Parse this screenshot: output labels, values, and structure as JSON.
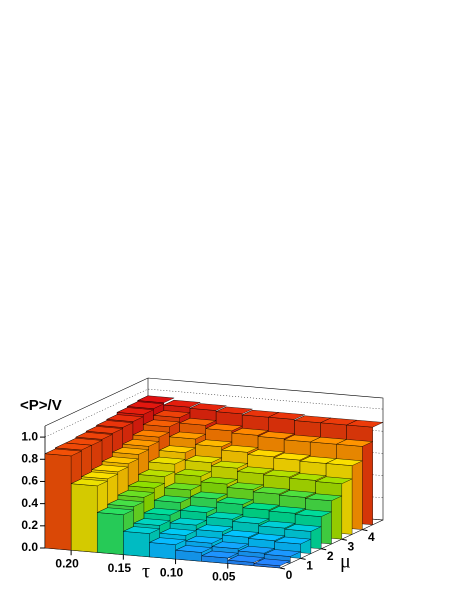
{
  "chart_data": {
    "type": "lego",
    "title": "<P>/V",
    "xlabel": "τ",
    "ylabel": "μ",
    "x_bins": [
      0,
      0.025,
      0.05,
      0.075,
      0.1,
      0.125,
      0.15,
      0.175,
      0.2,
      0.225
    ],
    "y_bins": [
      0,
      0.5,
      1,
      1.5,
      2,
      2.5,
      3,
      3.5,
      4,
      4.5,
      5
    ],
    "values": [
      [
        0.02,
        0.06,
        0.13,
        0.2,
        0.29,
        0.39,
        0.5,
        0.62,
        0.75,
        0.88
      ],
      [
        0.03,
        0.07,
        0.14,
        0.21,
        0.3,
        0.4,
        0.51,
        0.62,
        0.75,
        0.88
      ],
      [
        0.05,
        0.09,
        0.15,
        0.23,
        0.31,
        0.41,
        0.52,
        0.63,
        0.75,
        0.88
      ],
      [
        0.08,
        0.12,
        0.18,
        0.25,
        0.34,
        0.43,
        0.53,
        0.64,
        0.76,
        0.89
      ],
      [
        0.13,
        0.17,
        0.22,
        0.29,
        0.37,
        0.46,
        0.56,
        0.66,
        0.77,
        0.89
      ],
      [
        0.21,
        0.24,
        0.29,
        0.36,
        0.43,
        0.51,
        0.59,
        0.69,
        0.79,
        0.9
      ],
      [
        0.36,
        0.39,
        0.43,
        0.47,
        0.53,
        0.6,
        0.66,
        0.74,
        0.82,
        0.91
      ],
      [
        0.6,
        0.62,
        0.64,
        0.67,
        0.71,
        0.74,
        0.78,
        0.83,
        0.87,
        0.92
      ],
      [
        0.85,
        0.86,
        0.86,
        0.87,
        0.88,
        0.89,
        0.9,
        0.92,
        0.93,
        0.94
      ]
    ],
    "xlim": [
      0,
      0.225
    ],
    "ylim": [
      0,
      5
    ],
    "zlim": [
      0,
      1.1
    ],
    "xticks": [
      {
        "value": 0.2,
        "label": "0.20"
      },
      {
        "value": 0.15,
        "label": "0.15"
      },
      {
        "value": 0.1,
        "label": "0.10"
      },
      {
        "value": 0.05,
        "label": "0.05"
      }
    ],
    "yticks": [
      0,
      1,
      2,
      3,
      4
    ],
    "zticks": [
      {
        "value": 0,
        "label": "0.0"
      },
      {
        "value": 0.2,
        "label": "0.2"
      },
      {
        "value": 0.4,
        "label": "0.4"
      },
      {
        "value": 0.6,
        "label": "0.6"
      },
      {
        "value": 0.8,
        "label": "0.8"
      },
      {
        "value": 1,
        "label": "1.0"
      }
    ],
    "grid": true,
    "palette": [
      "#2c7bff",
      "#00c8ff",
      "#00e08a",
      "#8fe000",
      "#ffe000",
      "#ff8000",
      "#e01010"
    ]
  }
}
